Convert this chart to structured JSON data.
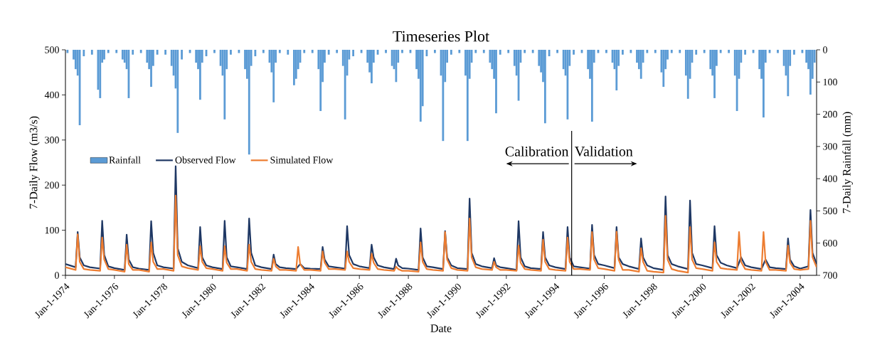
{
  "chart_data": {
    "type": "line",
    "title": "Timeseries Plot",
    "xlabel": "Date",
    "ylabel": "7-Daily Flow (m3/s)",
    "y2label": "7-Daily Rainfall (mm)",
    "xlim": [
      "1974-01-01",
      "2004-09"
    ],
    "xticks": [
      {
        "value": "1974-01-01",
        "label": "Jan-1-1974"
      },
      {
        "value": "1976-01-01",
        "label": "Jan-1-1976"
      },
      {
        "value": "1978-01-01",
        "label": "Jan-1-1978"
      },
      {
        "value": "1980-01-01",
        "label": "Jan-1-1980"
      },
      {
        "value": "1982-01-01",
        "label": "Jan-1-1982"
      },
      {
        "value": "1984-01-01",
        "label": "Jan-1-1984"
      },
      {
        "value": "1986-01-01",
        "label": "Jan-1-1986"
      },
      {
        "value": "1988-01-01",
        "label": "Jan-1-1988"
      },
      {
        "value": "1990-01-01",
        "label": "Jan-1-1990"
      },
      {
        "value": "1992-01-01",
        "label": "Jan-1-1992"
      },
      {
        "value": "1994-01-01",
        "label": "Jan-1-1994"
      },
      {
        "value": "1996-01-01",
        "label": "Jan-1-1996"
      },
      {
        "value": "1998-01-01",
        "label": "Jan-1-1998"
      },
      {
        "value": "2000-01-01",
        "label": "Jan-1-2000"
      },
      {
        "value": "2002-01-01",
        "label": "Jan-1-2002"
      },
      {
        "value": "2004-01-01",
        "label": "Jan-1-2004"
      }
    ],
    "ylim": [
      0,
      500
    ],
    "yticks": [
      0,
      100,
      200,
      300,
      400,
      500
    ],
    "y2lim": [
      700,
      0
    ],
    "y2ticks": [
      0,
      100,
      200,
      300,
      400,
      500,
      600,
      700
    ],
    "legend": "left",
    "ref_lines": [
      {
        "axis": "x",
        "value": "1994-09",
        "color": "#000000"
      }
    ],
    "annotations": [
      "Calibration",
      "Validation"
    ],
    "x": [
      "1974-01",
      "1974-06",
      "1974-07",
      "1974-08",
      "1974-10",
      "1975-01",
      "1975-06",
      "1975-07",
      "1975-08",
      "1975-10",
      "1976-01",
      "1976-06",
      "1976-07",
      "1976-08",
      "1976-10",
      "1977-01",
      "1977-06",
      "1977-07",
      "1977-08",
      "1977-10",
      "1978-01",
      "1978-06",
      "1978-07",
      "1978-08",
      "1978-10",
      "1979-01",
      "1979-06",
      "1979-07",
      "1979-08",
      "1979-10",
      "1980-01",
      "1980-06",
      "1980-07",
      "1980-08",
      "1980-10",
      "1981-01",
      "1981-06",
      "1981-07",
      "1981-08",
      "1981-10",
      "1982-01",
      "1982-06",
      "1982-07",
      "1982-08",
      "1982-10",
      "1983-01",
      "1983-06",
      "1983-07",
      "1983-08",
      "1983-10",
      "1984-01",
      "1984-06",
      "1984-07",
      "1984-08",
      "1984-10",
      "1985-01",
      "1985-06",
      "1985-07",
      "1985-08",
      "1985-10",
      "1986-01",
      "1986-06",
      "1986-07",
      "1986-08",
      "1986-10",
      "1987-01",
      "1987-06",
      "1987-07",
      "1987-08",
      "1987-10",
      "1988-01",
      "1988-06",
      "1988-07",
      "1988-08",
      "1988-10",
      "1989-01",
      "1989-06",
      "1989-07",
      "1989-08",
      "1989-10",
      "1990-01",
      "1990-06",
      "1990-07",
      "1990-08",
      "1990-10",
      "1991-01",
      "1991-06",
      "1991-07",
      "1991-08",
      "1991-10",
      "1992-01",
      "1992-06",
      "1992-07",
      "1992-08",
      "1992-10",
      "1993-01",
      "1993-06",
      "1993-07",
      "1993-08",
      "1993-10",
      "1994-01",
      "1994-06",
      "1994-07",
      "1994-08",
      "1994-10",
      "1995-01",
      "1995-06",
      "1995-07",
      "1995-08",
      "1995-10",
      "1996-01",
      "1996-06",
      "1996-07",
      "1996-08",
      "1996-10",
      "1997-01",
      "1997-06",
      "1997-07",
      "1997-08",
      "1997-10",
      "1998-01",
      "1998-06",
      "1998-07",
      "1998-08",
      "1998-10",
      "1999-01",
      "1999-06",
      "1999-07",
      "1999-08",
      "1999-10",
      "2000-01",
      "2000-06",
      "2000-07",
      "2000-08",
      "2000-10",
      "2001-01",
      "2001-06",
      "2001-07",
      "2001-08",
      "2001-10",
      "2002-01",
      "2002-06",
      "2002-07",
      "2002-08",
      "2002-10",
      "2003-01",
      "2003-06",
      "2003-07",
      "2003-08",
      "2003-10",
      "2004-01",
      "2004-05",
      "2004-06",
      "2004-07",
      "2004-09"
    ],
    "series": [
      {
        "name": "Rainfall",
        "type": "bar",
        "axis": "y2",
        "color": "#5b9bd5",
        "x": [
          "1974-02",
          "1974-05",
          "1974-06",
          "1974-07",
          "1974-08",
          "1974-10",
          "1975-02",
          "1975-05",
          "1975-06",
          "1975-07",
          "1975-08",
          "1975-10",
          "1976-02",
          "1976-05",
          "1976-06",
          "1976-07",
          "1976-08",
          "1976-10",
          "1977-02",
          "1977-05",
          "1977-06",
          "1977-07",
          "1977-08",
          "1977-10",
          "1978-02",
          "1978-05",
          "1978-06",
          "1978-07",
          "1978-08",
          "1978-10",
          "1979-02",
          "1979-05",
          "1979-06",
          "1979-07",
          "1979-08",
          "1979-10",
          "1980-02",
          "1980-05",
          "1980-06",
          "1980-07",
          "1980-08",
          "1980-10",
          "1981-02",
          "1981-05",
          "1981-06",
          "1981-07",
          "1981-08",
          "1981-10",
          "1982-02",
          "1982-05",
          "1982-06",
          "1982-07",
          "1982-08",
          "1982-10",
          "1983-02",
          "1983-05",
          "1983-06",
          "1983-07",
          "1983-08",
          "1983-10",
          "1984-02",
          "1984-05",
          "1984-06",
          "1984-07",
          "1984-08",
          "1984-10",
          "1985-02",
          "1985-05",
          "1985-06",
          "1985-07",
          "1985-08",
          "1985-10",
          "1986-02",
          "1986-05",
          "1986-06",
          "1986-07",
          "1986-08",
          "1986-10",
          "1987-02",
          "1987-05",
          "1987-06",
          "1987-07",
          "1987-08",
          "1987-10",
          "1988-02",
          "1988-05",
          "1988-06",
          "1988-07",
          "1988-08",
          "1988-10",
          "1989-02",
          "1989-05",
          "1989-06",
          "1989-07",
          "1989-08",
          "1989-10",
          "1990-02",
          "1990-05",
          "1990-06",
          "1990-07",
          "1990-08",
          "1990-10",
          "1991-02",
          "1991-05",
          "1991-06",
          "1991-07",
          "1991-08",
          "1991-10",
          "1992-02",
          "1992-05",
          "1992-06",
          "1992-07",
          "1992-08",
          "1992-10",
          "1993-02",
          "1993-05",
          "1993-06",
          "1993-07",
          "1993-08",
          "1993-10",
          "1994-02",
          "1994-05",
          "1994-06",
          "1994-07",
          "1994-08",
          "1994-10",
          "1995-02",
          "1995-05",
          "1995-06",
          "1995-07",
          "1995-08",
          "1995-10",
          "1996-02",
          "1996-05",
          "1996-06",
          "1996-07",
          "1996-08",
          "1996-10",
          "1997-02",
          "1997-05",
          "1997-06",
          "1997-07",
          "1997-08",
          "1997-10",
          "1998-02",
          "1998-05",
          "1998-06",
          "1998-07",
          "1998-08",
          "1998-10",
          "1999-02",
          "1999-05",
          "1999-06",
          "1999-07",
          "1999-08",
          "1999-10",
          "2000-02",
          "2000-05",
          "2000-06",
          "2000-07",
          "2000-08",
          "2000-10",
          "2001-02",
          "2001-05",
          "2001-06",
          "2001-07",
          "2001-08",
          "2001-10",
          "2002-02",
          "2002-05",
          "2002-06",
          "2002-07",
          "2002-08",
          "2002-10",
          "2003-02",
          "2003-05",
          "2003-06",
          "2003-07",
          "2003-08",
          "2003-10",
          "2004-02",
          "2004-04",
          "2004-05",
          "2004-06",
          "2004-07",
          "2004-08"
        ],
        "values": [
          10,
          30,
          60,
          80,
          234,
          20,
          15,
          124,
          150,
          40,
          30,
          10,
          10,
          30,
          40,
          60,
          150,
          15,
          10,
          40,
          60,
          115,
          50,
          15,
          15,
          50,
          80,
          120,
          258,
          30,
          10,
          40,
          60,
          155,
          40,
          20,
          10,
          50,
          80,
          216,
          60,
          15,
          10,
          60,
          90,
          325,
          50,
          20,
          10,
          40,
          70,
          163,
          40,
          10,
          15,
          110,
          90,
          60,
          40,
          10,
          10,
          60,
          190,
          100,
          40,
          15,
          10,
          50,
          216,
          80,
          30,
          20,
          10,
          40,
          70,
          104,
          40,
          15,
          10,
          50,
          60,
          100,
          40,
          10,
          10,
          60,
          90,
          223,
          175,
          20,
          10,
          80,
          283,
          100,
          40,
          15,
          10,
          80,
          283,
          90,
          40,
          10,
          10,
          40,
          60,
          90,
          197,
          15,
          10,
          50,
          80,
          158,
          40,
          10,
          10,
          50,
          70,
          100,
          228,
          20,
          10,
          60,
          80,
          216,
          50,
          15,
          10,
          60,
          90,
          223,
          40,
          10,
          10,
          40,
          60,
          126,
          50,
          15,
          10,
          40,
          60,
          90,
          40,
          10,
          10,
          70,
          115,
          60,
          30,
          10,
          10,
          80,
          152,
          90,
          40,
          15,
          10,
          60,
          80,
          150,
          50,
          10,
          10,
          80,
          190,
          90,
          40,
          15,
          10,
          60,
          90,
          210,
          40,
          10,
          10,
          50,
          80,
          144,
          50,
          15,
          10,
          40,
          60,
          139,
          90,
          40
        ]
      },
      {
        "name": "Observed Flow",
        "color": "#1f3864",
        "values": [
          25,
          18,
          96,
          40,
          22,
          18,
          15,
          121,
          45,
          20,
          16,
          12,
          90,
          35,
          18,
          15,
          12,
          120,
          50,
          22,
          18,
          15,
          242,
          60,
          30,
          22,
          16,
          107,
          40,
          22,
          18,
          14,
          121,
          40,
          20,
          18,
          14,
          126,
          50,
          22,
          18,
          14,
          46,
          25,
          18,
          16,
          14,
          null,
          25,
          16,
          15,
          14,
          63,
          35,
          20,
          18,
          15,
          109,
          45,
          25,
          20,
          16,
          68,
          40,
          22,
          18,
          14,
          37,
          22,
          16,
          15,
          12,
          104,
          40,
          20,
          18,
          14,
          98,
          40,
          22,
          16,
          14,
          170,
          50,
          25,
          20,
          16,
          38,
          22,
          18,
          16,
          12,
          120,
          40,
          20,
          16,
          14,
          96,
          40,
          22,
          18,
          14,
          107,
          40,
          20,
          18,
          15,
          112,
          45,
          25,
          22,
          16,
          107,
          40,
          25,
          20,
          14,
          82,
          40,
          22,
          16,
          12,
          175,
          45,
          25,
          20,
          14,
          166,
          50,
          25,
          22,
          16,
          109,
          45,
          28,
          22,
          16,
          null,
          40,
          22,
          18,
          14,
          null,
          35,
          18,
          16,
          14,
          82,
          35,
          20,
          15,
          20,
          145,
          50,
          25
        ]
      },
      {
        "name": "Simulated Flow",
        "color": "#ed7d31",
        "values": [
          18,
          12,
          91,
          30,
          14,
          12,
          10,
          84,
          35,
          14,
          12,
          8,
          68,
          25,
          12,
          12,
          8,
          73,
          30,
          14,
          14,
          10,
          177,
          45,
          20,
          16,
          12,
          65,
          30,
          16,
          14,
          10,
          65,
          28,
          14,
          14,
          10,
          68,
          30,
          14,
          12,
          10,
          37,
          20,
          12,
          12,
          10,
          63,
          25,
          12,
          12,
          10,
          53,
          28,
          14,
          14,
          12,
          53,
          30,
          16,
          14,
          12,
          48,
          28,
          14,
          12,
          10,
          19,
          14,
          10,
          10,
          8,
          73,
          30,
          14,
          12,
          10,
          96,
          35,
          16,
          12,
          10,
          126,
          40,
          18,
          14,
          12,
          30,
          18,
          12,
          12,
          10,
          66,
          28,
          14,
          12,
          10,
          79,
          30,
          14,
          12,
          10,
          84,
          30,
          14,
          14,
          12,
          96,
          35,
          16,
          14,
          10,
          97,
          35,
          12,
          12,
          8,
          60,
          30,
          10,
          8,
          6,
          132,
          35,
          14,
          10,
          6,
          107,
          35,
          16,
          14,
          10,
          73,
          30,
          16,
          14,
          12,
          96,
          30,
          14,
          12,
          10,
          96,
          30,
          12,
          12,
          10,
          66,
          28,
          14,
          12,
          14,
          121,
          40,
          18
        ]
      }
    ]
  }
}
